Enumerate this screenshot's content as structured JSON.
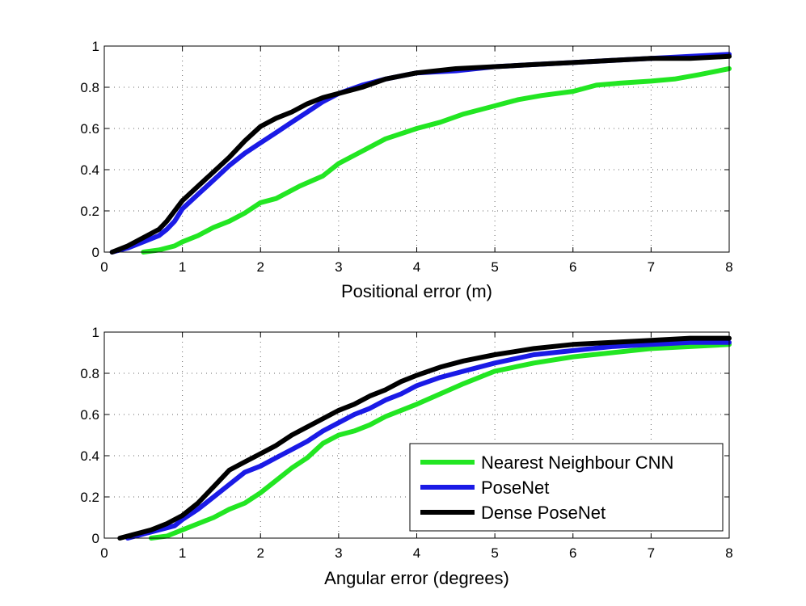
{
  "colors": {
    "nearest_neighbour_cnn": "#22e622",
    "posenet": "#1a1ae6",
    "dense_posenet": "#000000",
    "background": "#ffffff",
    "axes": "#000000"
  },
  "legend": {
    "placement": "bottom-right of lower plot",
    "entries": [
      "Nearest Neighbour CNN",
      "PoseNet",
      "Dense PoseNet"
    ]
  },
  "chart_data": [
    {
      "type": "line",
      "title": "",
      "xlabel": "Positional error (m)",
      "ylabel": "",
      "xlim": [
        0,
        8
      ],
      "ylim": [
        0,
        1
      ],
      "xticks": [
        0,
        1,
        2,
        3,
        4,
        5,
        6,
        7,
        8
      ],
      "yticks": [
        0,
        0.2,
        0.4,
        0.6,
        0.8,
        1
      ],
      "xtick_labels": [
        "0",
        "1",
        "2",
        "3",
        "4",
        "5",
        "6",
        "7",
        "8"
      ],
      "ytick_labels": [
        "0",
        "0.2",
        "0.4",
        "0.6",
        "0.8",
        "1"
      ],
      "grid": true,
      "series": [
        {
          "name": "Nearest Neighbour CNN",
          "color": "#22e622",
          "x": [
            0.5,
            0.7,
            0.9,
            1.0,
            1.2,
            1.4,
            1.6,
            1.8,
            2.0,
            2.2,
            2.5,
            2.8,
            3.0,
            3.3,
            3.6,
            4.0,
            4.3,
            4.6,
            5.0,
            5.3,
            5.6,
            6.0,
            6.3,
            6.6,
            7.0,
            7.3,
            7.6,
            8.0
          ],
          "y": [
            0.0,
            0.01,
            0.03,
            0.05,
            0.08,
            0.12,
            0.15,
            0.19,
            0.24,
            0.26,
            0.32,
            0.37,
            0.43,
            0.49,
            0.55,
            0.6,
            0.63,
            0.67,
            0.71,
            0.74,
            0.76,
            0.78,
            0.81,
            0.82,
            0.83,
            0.84,
            0.86,
            0.89
          ]
        },
        {
          "name": "PoseNet",
          "color": "#1a1ae6",
          "x": [
            0.1,
            0.3,
            0.5,
            0.7,
            0.8,
            0.9,
            1.0,
            1.2,
            1.4,
            1.6,
            1.8,
            2.0,
            2.2,
            2.4,
            2.6,
            2.8,
            3.0,
            3.3,
            3.6,
            4.0,
            4.5,
            5.0,
            5.5,
            6.0,
            6.5,
            7.0,
            7.5,
            8.0
          ],
          "y": [
            0.0,
            0.02,
            0.05,
            0.08,
            0.11,
            0.15,
            0.21,
            0.28,
            0.35,
            0.42,
            0.48,
            0.53,
            0.58,
            0.63,
            0.68,
            0.73,
            0.77,
            0.81,
            0.84,
            0.87,
            0.88,
            0.9,
            0.91,
            0.92,
            0.93,
            0.94,
            0.95,
            0.96
          ]
        },
        {
          "name": "Dense PoseNet",
          "color": "#000000",
          "x": [
            0.1,
            0.3,
            0.5,
            0.7,
            0.8,
            0.9,
            1.0,
            1.2,
            1.4,
            1.6,
            1.8,
            2.0,
            2.2,
            2.4,
            2.6,
            2.8,
            3.0,
            3.3,
            3.6,
            4.0,
            4.5,
            5.0,
            5.5,
            6.0,
            6.5,
            7.0,
            7.5,
            8.0
          ],
          "y": [
            0.0,
            0.03,
            0.07,
            0.11,
            0.15,
            0.2,
            0.25,
            0.32,
            0.39,
            0.46,
            0.54,
            0.61,
            0.65,
            0.68,
            0.72,
            0.75,
            0.77,
            0.8,
            0.84,
            0.87,
            0.89,
            0.9,
            0.91,
            0.92,
            0.93,
            0.94,
            0.94,
            0.95
          ]
        }
      ]
    },
    {
      "type": "line",
      "title": "",
      "xlabel": "Angular error (degrees)",
      "ylabel": "",
      "xlim": [
        0,
        8
      ],
      "ylim": [
        0,
        1
      ],
      "xticks": [
        0,
        1,
        2,
        3,
        4,
        5,
        6,
        7,
        8
      ],
      "yticks": [
        0,
        0.2,
        0.4,
        0.6,
        0.8,
        1
      ],
      "xtick_labels": [
        "0",
        "1",
        "2",
        "3",
        "4",
        "5",
        "6",
        "7",
        "8"
      ],
      "ytick_labels": [
        "0",
        "0.2",
        "0.4",
        "0.6",
        "0.8",
        "1"
      ],
      "grid": true,
      "series": [
        {
          "name": "Nearest Neighbour CNN",
          "color": "#22e622",
          "x": [
            0.6,
            0.8,
            1.0,
            1.2,
            1.4,
            1.6,
            1.8,
            2.0,
            2.2,
            2.4,
            2.6,
            2.8,
            3.0,
            3.2,
            3.4,
            3.6,
            3.8,
            4.0,
            4.3,
            4.6,
            5.0,
            5.5,
            6.0,
            6.5,
            7.0,
            7.5,
            8.0
          ],
          "y": [
            0.0,
            0.01,
            0.04,
            0.07,
            0.1,
            0.14,
            0.17,
            0.22,
            0.28,
            0.34,
            0.39,
            0.46,
            0.5,
            0.52,
            0.55,
            0.59,
            0.62,
            0.65,
            0.7,
            0.75,
            0.81,
            0.85,
            0.88,
            0.9,
            0.92,
            0.93,
            0.94
          ]
        },
        {
          "name": "PoseNet",
          "color": "#1a1ae6",
          "x": [
            0.3,
            0.5,
            0.7,
            0.9,
            1.0,
            1.2,
            1.4,
            1.6,
            1.8,
            2.0,
            2.2,
            2.4,
            2.6,
            2.8,
            3.0,
            3.2,
            3.4,
            3.6,
            3.8,
            4.0,
            4.3,
            4.6,
            5.0,
            5.5,
            6.0,
            6.5,
            7.0,
            7.5,
            8.0
          ],
          "y": [
            0.0,
            0.02,
            0.04,
            0.06,
            0.09,
            0.14,
            0.2,
            0.26,
            0.32,
            0.35,
            0.39,
            0.43,
            0.47,
            0.52,
            0.56,
            0.6,
            0.63,
            0.67,
            0.7,
            0.74,
            0.78,
            0.81,
            0.85,
            0.89,
            0.91,
            0.93,
            0.94,
            0.95,
            0.95
          ]
        },
        {
          "name": "Dense PoseNet",
          "color": "#000000",
          "x": [
            0.2,
            0.4,
            0.6,
            0.8,
            1.0,
            1.2,
            1.4,
            1.6,
            1.8,
            2.0,
            2.2,
            2.4,
            2.6,
            2.8,
            3.0,
            3.2,
            3.4,
            3.6,
            3.8,
            4.0,
            4.3,
            4.6,
            5.0,
            5.5,
            6.0,
            6.5,
            7.0,
            7.5,
            8.0
          ],
          "y": [
            0.0,
            0.02,
            0.04,
            0.07,
            0.11,
            0.17,
            0.25,
            0.33,
            0.37,
            0.41,
            0.45,
            0.5,
            0.54,
            0.58,
            0.62,
            0.65,
            0.69,
            0.72,
            0.76,
            0.79,
            0.83,
            0.86,
            0.89,
            0.92,
            0.94,
            0.95,
            0.96,
            0.97,
            0.97
          ]
        }
      ]
    }
  ]
}
